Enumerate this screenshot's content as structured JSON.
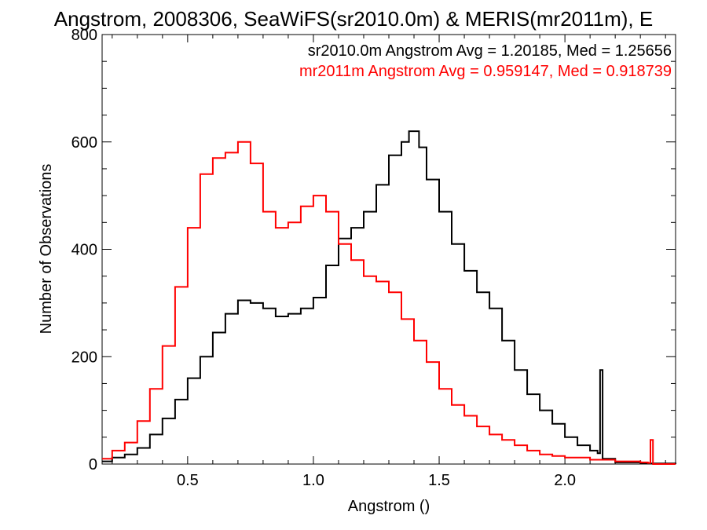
{
  "chart_data": {
    "type": "line",
    "title": "Angstrom, 2008306, SeaWiFS(sr2010.0m) & MERIS(mr2011m), E",
    "xlabel": "Angstrom ()",
    "ylabel": "Number of Observations",
    "xlim": [
      0.16,
      2.44
    ],
    "ylim": [
      0,
      800
    ],
    "xticks": [
      0.5,
      1.0,
      1.5,
      2.0
    ],
    "xtick_labels": [
      "0.5",
      "1.0",
      "1.5",
      "2.0"
    ],
    "yticks": [
      0,
      200,
      400,
      600,
      800
    ],
    "ytick_labels": [
      "0",
      "200",
      "400",
      "600",
      "800"
    ],
    "grid": false,
    "legend_position": "top-right",
    "series": [
      {
        "name": "sr2010.0m",
        "label": "sr2010.0m Angstrom Avg = 1.20185, Med = 1.25656",
        "color": "#000000",
        "x": [
          0.16,
          0.2,
          0.25,
          0.3,
          0.35,
          0.4,
          0.45,
          0.5,
          0.55,
          0.6,
          0.65,
          0.7,
          0.75,
          0.8,
          0.85,
          0.9,
          0.95,
          1.0,
          1.05,
          1.1,
          1.15,
          1.2,
          1.25,
          1.3,
          1.35,
          1.38,
          1.42,
          1.45,
          1.5,
          1.55,
          1.6,
          1.65,
          1.7,
          1.75,
          1.8,
          1.85,
          1.9,
          1.95,
          2.0,
          2.05,
          2.1,
          2.13,
          2.14,
          2.15,
          2.2,
          2.3,
          2.44
        ],
        "y": [
          5,
          12,
          18,
          30,
          55,
          85,
          120,
          160,
          200,
          245,
          280,
          305,
          300,
          290,
          275,
          280,
          290,
          310,
          370,
          420,
          440,
          470,
          520,
          575,
          600,
          620,
          590,
          530,
          470,
          410,
          360,
          320,
          290,
          230,
          175,
          130,
          100,
          75,
          50,
          35,
          25,
          20,
          175,
          10,
          3,
          1,
          0
        ]
      },
      {
        "name": "mr2011m",
        "label": "mr2011m Angstrom Avg = 0.959147, Med = 0.918739",
        "color": "#ff0000",
        "x": [
          0.16,
          0.2,
          0.25,
          0.3,
          0.35,
          0.4,
          0.45,
          0.5,
          0.55,
          0.6,
          0.65,
          0.7,
          0.75,
          0.8,
          0.85,
          0.9,
          0.95,
          1.0,
          1.05,
          1.1,
          1.15,
          1.2,
          1.25,
          1.3,
          1.35,
          1.4,
          1.45,
          1.5,
          1.55,
          1.6,
          1.65,
          1.7,
          1.75,
          1.8,
          1.85,
          1.9,
          1.95,
          2.0,
          2.1,
          2.2,
          2.3,
          2.33,
          2.34,
          2.35,
          2.44
        ],
        "y": [
          10,
          25,
          40,
          80,
          140,
          220,
          330,
          440,
          540,
          570,
          580,
          600,
          560,
          470,
          440,
          450,
          480,
          500,
          470,
          410,
          380,
          350,
          340,
          320,
          270,
          230,
          190,
          140,
          110,
          90,
          70,
          55,
          45,
          35,
          25,
          18,
          15,
          12,
          8,
          5,
          3,
          2,
          45,
          0,
          0
        ]
      }
    ]
  }
}
